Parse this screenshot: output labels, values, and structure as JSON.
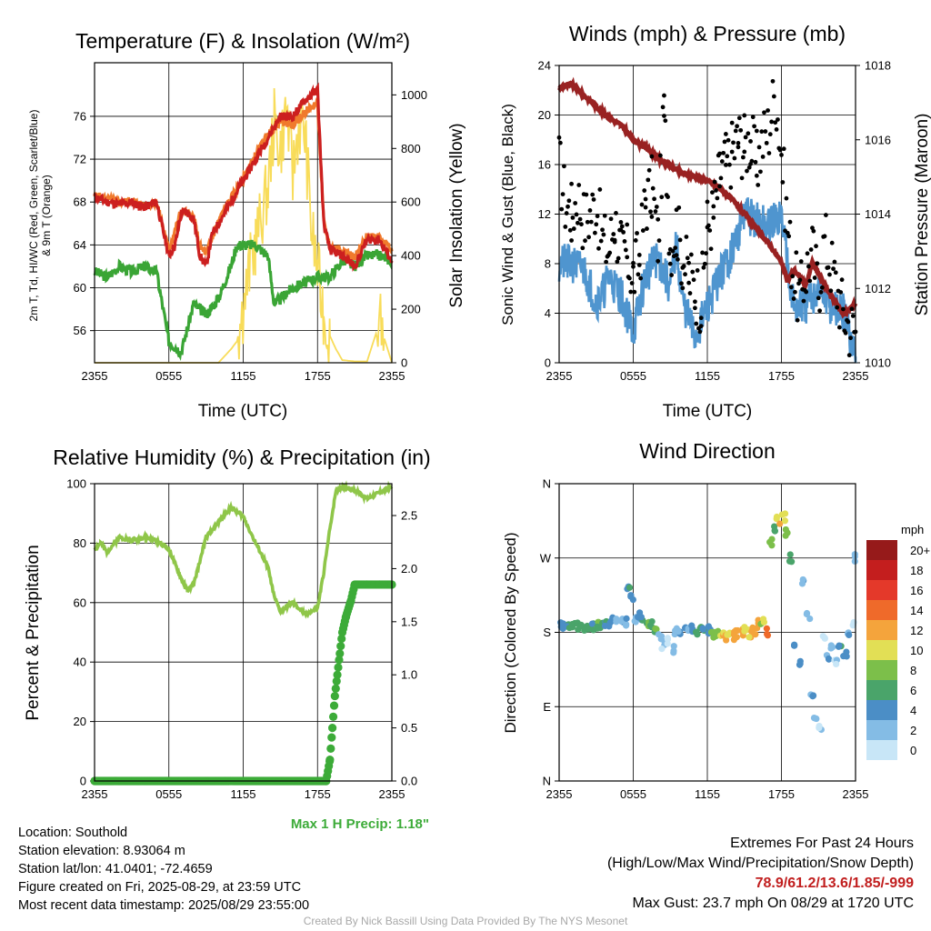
{
  "panels": {
    "temperature": {
      "title": "Temperature (F) & Insolation (W/m²)",
      "ylabel_line1": "2m T, Td, HI/WC (Red, Green, Scarlet/Blue)",
      "ylabel_line2": "& 9m T (Orange)",
      "y2label": "Solar Insolation (Yellow)",
      "xlabel": "Time (UTC)"
    },
    "winds": {
      "title": "Winds (mph) & Pressure (mb)",
      "ylabel": "Sonic Wind & Gust (Blue, Black)",
      "y2label": "Station Pressure (Maroon)",
      "xlabel": "Time (UTC)"
    },
    "humidity": {
      "title": "Relative Humidity (%) & Precipitation (in)",
      "ylabel": "Percent & Precipitation",
      "max_precip": "Max 1 H Precip: 1.18\""
    },
    "direction": {
      "title": "Wind Direction",
      "ylabel": "Direction (Colored By Speed)",
      "legend_title": "mph"
    }
  },
  "info": {
    "location": "Location: Southold",
    "elevation": "Station elevation: 8.93064 m",
    "latlon": "Station lat/lon: 41.0401; -72.4659",
    "created": "Figure created on Fri, 2025-08-29, at 23:59 UTC",
    "recent": "Most recent data timestamp: 2025/08/29 23:55:00"
  },
  "extremes": {
    "heading": "Extremes For Past 24 Hours",
    "subheading": "(High/Low/Max Wind/Precipitation/Snow Depth)",
    "values": "78.9/61.2/13.6/1.85/-999",
    "gust": "Max Gust: 23.7 mph On 08/29 at 1720 UTC"
  },
  "credit": "Created By Nick Bassill Using Data Provided By The NYS Mesonet",
  "colors": {
    "temp": "#cc1f1f",
    "temp9m": "#f07a2c",
    "dewpoint": "#3aa535",
    "insolation": "#f8dc5a",
    "wind": "#4f95cf",
    "gust": "#000000",
    "pressure": "#992222",
    "rh": "#8fc649",
    "precip": "#3cab38"
  },
  "chart_data": [
    {
      "type": "line",
      "title": "Temperature (F) & Insolation (W/m²)",
      "xlabel": "Time (UTC)",
      "x_ticks": [
        "2355",
        "0555",
        "1155",
        "1755",
        "2355"
      ],
      "x_hours": [
        0,
        6,
        12,
        18,
        24
      ],
      "ylim": [
        53,
        81
      ],
      "y_ticks": [
        56,
        60,
        64,
        68,
        72,
        76
      ],
      "y2lim": [
        0,
        1120
      ],
      "y2_ticks": [
        0,
        200,
        400,
        600,
        800,
        1000
      ],
      "series": [
        {
          "name": "2m T",
          "axis": "y",
          "x": [
            0,
            1,
            2,
            3,
            4,
            5,
            6,
            6.5,
            7,
            7.5,
            8,
            8.5,
            9,
            9.5,
            10,
            10.5,
            11,
            11.5,
            12,
            13,
            14,
            15,
            16,
            17,
            18,
            18.5,
            19,
            20,
            21,
            22,
            23,
            24
          ],
          "values": [
            68.5,
            68,
            67.8,
            68,
            67.5,
            68,
            63,
            64,
            67,
            67,
            66.5,
            63,
            62,
            65,
            66,
            67,
            68,
            69,
            70,
            72,
            74,
            76,
            76,
            77.5,
            78.5,
            66,
            63.5,
            63,
            62,
            64.5,
            64.5,
            62.5
          ]
        },
        {
          "name": "9m T",
          "axis": "y",
          "x": [
            0,
            1,
            2,
            3,
            4,
            5,
            6,
            7,
            8,
            8.5,
            9,
            10,
            11,
            12,
            13,
            14,
            15,
            16,
            17,
            18,
            18.5,
            19,
            20,
            21,
            22,
            23,
            24
          ],
          "values": [
            68.6,
            68.3,
            68,
            68.1,
            67.6,
            68,
            63.5,
            67.2,
            66.6,
            63.8,
            63.2,
            66.2,
            68.3,
            70.2,
            72.4,
            74.3,
            75.6,
            75.2,
            76.4,
            77.3,
            66.1,
            63.8,
            63.6,
            62.8,
            64.8,
            64.9,
            63.4
          ]
        },
        {
          "name": "2m Td",
          "axis": "y",
          "x": [
            0,
            1,
            2,
            3,
            4,
            5,
            6,
            7,
            8,
            8.5,
            9,
            10,
            11,
            11.5,
            12,
            13,
            14,
            14.5,
            15,
            16,
            17,
            18,
            19,
            20,
            21,
            22,
            23,
            24
          ],
          "values": [
            61.5,
            61,
            62,
            61.5,
            62,
            61.5,
            55,
            54,
            58.5,
            58,
            57.5,
            59,
            62,
            64,
            64,
            64,
            63,
            58.5,
            59,
            60,
            60.5,
            61,
            61,
            62.5,
            62,
            63,
            63,
            62.5
          ]
        },
        {
          "name": "Insolation",
          "axis": "y2",
          "x": [
            0,
            10,
            11,
            11.5,
            12,
            12.5,
            13,
            14,
            14.5,
            15,
            15.5,
            16,
            16.5,
            17,
            17.5,
            18,
            18.5,
            19,
            19.5,
            20,
            21,
            22,
            23,
            24
          ],
          "values": [
            0,
            0,
            50,
            80,
            200,
            350,
            450,
            650,
            900,
            800,
            950,
            700,
            900,
            850,
            500,
            350,
            180,
            100,
            50,
            10,
            5,
            5,
            150,
            0
          ]
        }
      ]
    },
    {
      "type": "line",
      "title": "Winds (mph) & Pressure (mb)",
      "xlabel": "Time (UTC)",
      "x_ticks": [
        "2355",
        "0555",
        "1155",
        "1755",
        "2355"
      ],
      "x_hours": [
        0,
        6,
        12,
        18,
        24
      ],
      "ylim": [
        0,
        24
      ],
      "y_ticks": [
        0,
        4,
        8,
        12,
        16,
        20,
        24
      ],
      "y2lim": [
        1010,
        1018
      ],
      "y2_ticks": [
        1010,
        1012,
        1014,
        1016,
        1018
      ],
      "series": [
        {
          "name": "Sonic Wind",
          "axis": "y",
          "x": [
            0,
            1,
            2,
            3,
            3.5,
            4,
            5,
            6,
            7,
            8,
            9,
            9.5,
            10,
            11,
            12,
            13,
            14,
            15,
            16,
            17,
            18,
            19,
            20,
            21,
            22,
            23,
            24
          ],
          "values": [
            8,
            8,
            7.5,
            5,
            5.5,
            7,
            5.5,
            2.5,
            7,
            8.5,
            6,
            9.5,
            5,
            2,
            4.5,
            7,
            9,
            12,
            11.5,
            11,
            12,
            4.5,
            4.5,
            6,
            4.5,
            4,
            0.5
          ]
        },
        {
          "name": "Gust",
          "axis": "y",
          "x": [
            0,
            0.5,
            1,
            1.5,
            2,
            2.5,
            3,
            3.5,
            4,
            4.5,
            5,
            5.5,
            6,
            6.5,
            7,
            7.5,
            8,
            8.5,
            9,
            9.5,
            10,
            10.5,
            11,
            11.5,
            12,
            12.5,
            13,
            13.5,
            14,
            14.5,
            15,
            15.5,
            16,
            16.5,
            17,
            17.5,
            18,
            18.5,
            19,
            19.5,
            20,
            20.5,
            21,
            21.5,
            22,
            22.5,
            23,
            23.5,
            24
          ],
          "values": [
            16,
            13,
            12,
            13.5,
            11.5,
            12,
            13,
            10,
            9,
            11.5,
            9,
            8.5,
            7,
            8.5,
            13,
            14,
            10,
            20,
            9.5,
            11,
            8.5,
            7,
            6,
            5,
            11,
            12,
            15,
            16,
            17,
            18,
            17.5,
            18,
            16,
            18,
            19,
            22,
            17,
            11,
            7,
            5,
            7.5,
            9,
            6,
            10,
            8,
            6,
            4,
            3,
            2.5
          ]
        },
        {
          "name": "Station Pressure",
          "axis": "y2",
          "x": [
            0,
            1,
            2,
            3,
            4,
            5,
            6,
            7,
            8,
            9,
            10,
            11,
            12,
            13,
            14,
            15,
            16,
            17,
            18,
            18.5,
            19,
            20,
            20.5,
            21,
            21.5,
            22,
            22.5,
            23,
            24
          ],
          "values": [
            1017.4,
            1017.5,
            1017.2,
            1016.9,
            1016.6,
            1016.4,
            1016,
            1015.8,
            1015.5,
            1015.3,
            1015.1,
            1015,
            1014.9,
            1014.7,
            1014.4,
            1014,
            1013.6,
            1013.2,
            1012.7,
            1012.2,
            1012.5,
            1012.1,
            1012.7,
            1012.4,
            1012.1,
            1011.8,
            1011.6,
            1011.3,
            1011.6
          ]
        }
      ]
    },
    {
      "type": "line",
      "title": "Relative Humidity (%) & Precipitation (in)",
      "x_ticks": [
        "2355",
        "0555",
        "1155",
        "1755",
        "2355"
      ],
      "x_hours": [
        0,
        6,
        12,
        18,
        24
      ],
      "ylim": [
        0,
        100
      ],
      "y_ticks": [
        0,
        20,
        40,
        60,
        80,
        100
      ],
      "y2lim": [
        0,
        2.8
      ],
      "y2_ticks": [
        0.0,
        0.5,
        1.0,
        1.5,
        2.0,
        2.5
      ],
      "series": [
        {
          "name": "Relative Humidity",
          "axis": "y",
          "x": [
            0,
            0.5,
            1,
            2,
            3,
            4,
            5,
            6,
            6.5,
            7,
            7.5,
            8,
            9,
            10,
            11,
            12,
            13,
            14,
            14.5,
            15,
            16,
            17,
            18,
            18.5,
            19,
            19.5,
            20,
            21,
            22,
            23,
            24
          ],
          "values": [
            78,
            80,
            77,
            82,
            81,
            82,
            81,
            78,
            73,
            68,
            64,
            66,
            82,
            87,
            92,
            89,
            80,
            72,
            62,
            57,
            60,
            56,
            58,
            70,
            85,
            98,
            99,
            98,
            95,
            97,
            99
          ]
        },
        {
          "name": "Precipitation",
          "axis": "y2",
          "x": [
            0,
            18.7,
            19,
            19.2,
            19.4,
            19.6,
            19.8,
            20,
            20.3,
            20.7,
            21,
            22,
            23,
            24
          ],
          "values": [
            0,
            0,
            0.2,
            0.5,
            0.8,
            1.0,
            1.2,
            1.4,
            1.55,
            1.7,
            1.85,
            1.85,
            1.85,
            1.85
          ]
        }
      ]
    },
    {
      "type": "scatter",
      "title": "Wind Direction",
      "x_ticks": [
        "2355",
        "0555",
        "1155",
        "1755",
        "2355"
      ],
      "x_hours": [
        0,
        6,
        12,
        18,
        24
      ],
      "y_ticks": [
        "N",
        "E",
        "S",
        "W",
        "N"
      ],
      "y_deg": [
        0,
        90,
        180,
        270,
        360
      ],
      "legend": {
        "title": "mph",
        "levels": [
          "0",
          "2",
          "4",
          "6",
          "8",
          "10",
          "12",
          "14",
          "16",
          "18",
          "20+"
        ],
        "colors": [
          "#c8e6f7",
          "#84bce5",
          "#4b8ec6",
          "#4aa46a",
          "#7cbf4a",
          "#e2df55",
          "#f4a43c",
          "#ef6a2a",
          "#e4392a",
          "#c41e1e",
          "#961a1a"
        ]
      },
      "points_hours": [
        0,
        0.3,
        0.6,
        1,
        1.3,
        1.6,
        2,
        2.3,
        2.6,
        3,
        3.3,
        3.6,
        4,
        4.3,
        4.6,
        5,
        5.3,
        5.5,
        5.7,
        6,
        6.3,
        6.6,
        7,
        7.3,
        7.6,
        8,
        8.3,
        8.6,
        9,
        9.3,
        9.6,
        10,
        10.3,
        10.6,
        11,
        11.3,
        11.6,
        12,
        12.3,
        12.6,
        13,
        13.3,
        13.6,
        14,
        14.3,
        14.6,
        15,
        15.3,
        15.6,
        16,
        16.3,
        16.6,
        17,
        17.3,
        17.6,
        18,
        18.3,
        18.6,
        19,
        19.3,
        19.6,
        20,
        20.3,
        20.6,
        21,
        21.3,
        21.6,
        22,
        22.3,
        22.6,
        23,
        23.3,
        23.6,
        24
      ],
      "points_deg": [
        188,
        188,
        186,
        188,
        187,
        185,
        186,
        185,
        187,
        188,
        189,
        190,
        191,
        193,
        194,
        195,
        193,
        235,
        222,
        195,
        200,
        198,
        190,
        189,
        185,
        175,
        165,
        170,
        160,
        180,
        178,
        182,
        184,
        185,
        178,
        183,
        181,
        183,
        176,
        180,
        178,
        175,
        178,
        176,
        178,
        180,
        183,
        178,
        182,
        190,
        195,
        180,
        290,
        305,
        315,
        320,
        300,
        270,
        160,
        145,
        240,
        200,
        100,
        75,
        65,
        175,
        150,
        165,
        145,
        160,
        155,
        175,
        190,
        270
      ],
      "points_speed": [
        5,
        5,
        6,
        7,
        7,
        6,
        7,
        7,
        6,
        8,
        7,
        6,
        5,
        5,
        4,
        4,
        4,
        6,
        5,
        3,
        5,
        6,
        8,
        7,
        8,
        3,
        2,
        1,
        2,
        3,
        4,
        4,
        3,
        5,
        7,
        7,
        6,
        5,
        9,
        9,
        12,
        12,
        11,
        13,
        13,
        12,
        11,
        12,
        13,
        14,
        10,
        14,
        9,
        7,
        12,
        11,
        9,
        7,
        6,
        5,
        4,
        3,
        4,
        3,
        2,
        1,
        4,
        3,
        2,
        6,
        5,
        4,
        1,
        2
      ]
    }
  ]
}
